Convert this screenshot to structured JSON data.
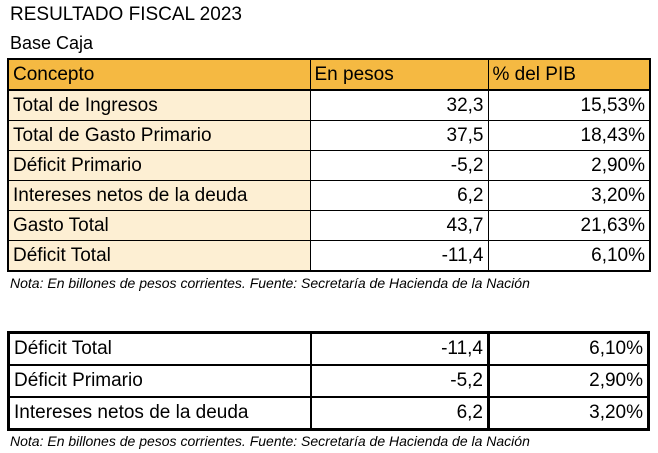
{
  "title": "RESULTADO FISCAL 2023",
  "subtitle": "Base Caja",
  "main_table": {
    "headers": [
      "Concepto",
      "En pesos",
      "% del PIB"
    ],
    "rows": [
      {
        "concept": "Total de Ingresos",
        "pesos": "32,3",
        "pib": "15,53%"
      },
      {
        "concept": "Total de Gasto Primario",
        "pesos": "37,5",
        "pib": "18,43%"
      },
      {
        "concept": "Déficit Primario",
        "pesos": "-5,2",
        "pib": "2,90%"
      },
      {
        "concept": "Intereses netos de la deuda",
        "pesos": "6,2",
        "pib": "3,20%"
      },
      {
        "concept": "Gasto Total",
        "pesos": "43,7",
        "pib": "21,63%"
      },
      {
        "concept": "Déficit Total",
        "pesos": "-11,4",
        "pib": "6,10%"
      }
    ]
  },
  "note_1": "Nota: En billones de pesos corrientes. Fuente: Secretaría de Hacienda de la Nación",
  "summary_table": {
    "rows": [
      {
        "concept": "Déficit Total",
        "pesos": "-11,4",
        "pib": "6,10%"
      },
      {
        "concept": "Déficit Primario",
        "pesos": "-5,2",
        "pib": "2,90%"
      },
      {
        "concept": "Intereses netos de la deuda",
        "pesos": "6,2",
        "pib": "3,20%"
      }
    ]
  },
  "note_2": "Nota: En billones de pesos corrientes. Fuente: Secretaría de Hacienda de la Nación"
}
